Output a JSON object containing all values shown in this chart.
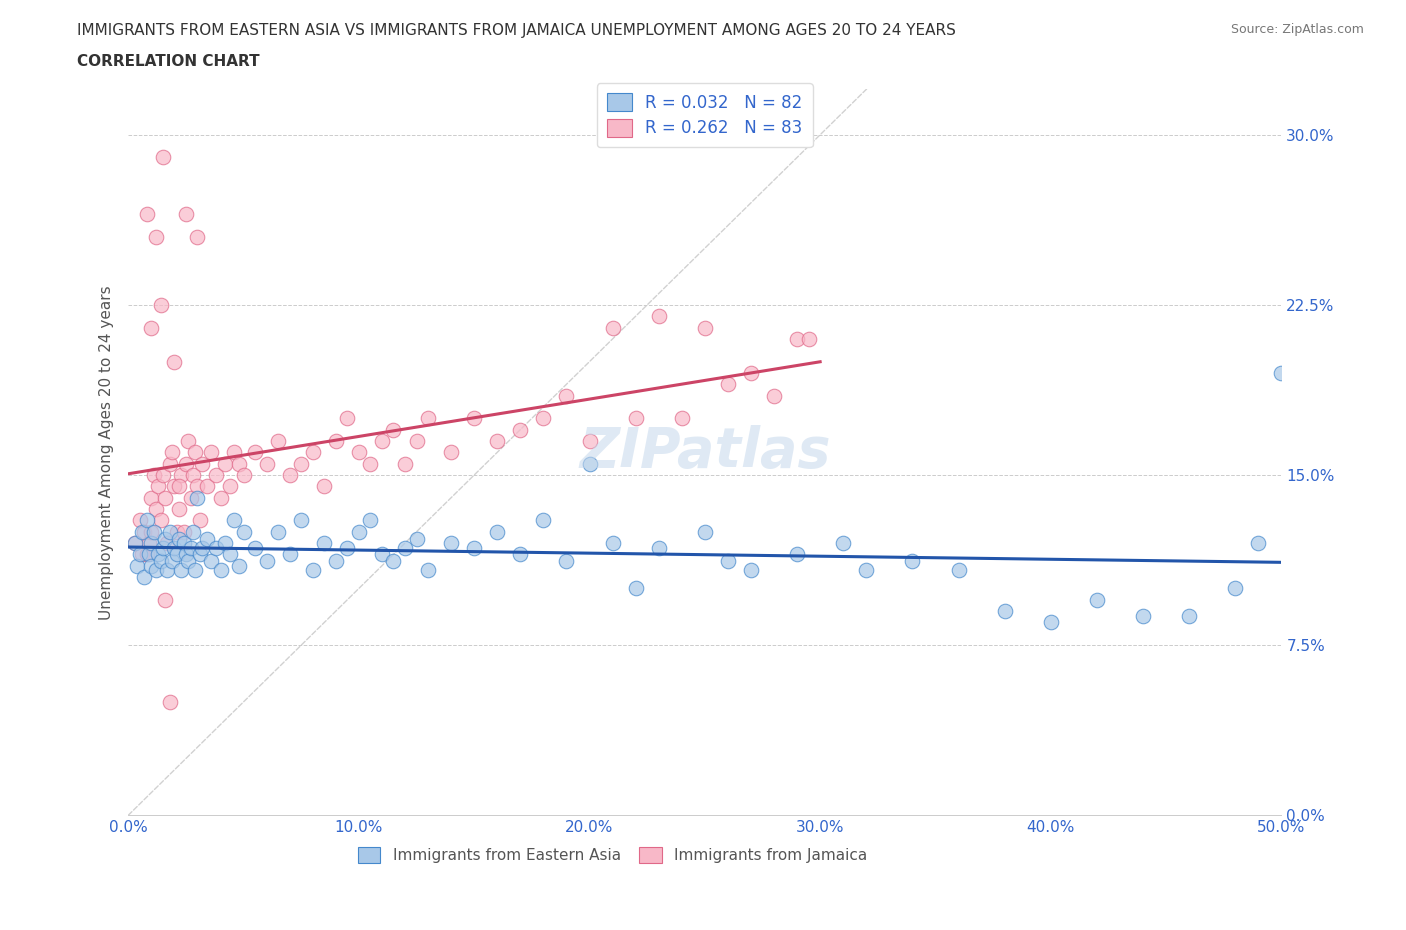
{
  "title_line1": "IMMIGRANTS FROM EASTERN ASIA VS IMMIGRANTS FROM JAMAICA UNEMPLOYMENT AMONG AGES 20 TO 24 YEARS",
  "title_line2": "CORRELATION CHART",
  "source_text": "Source: ZipAtlas.com",
  "ylabel": "Unemployment Among Ages 20 to 24 years",
  "xlim": [
    0.0,
    0.5
  ],
  "ylim": [
    0.0,
    0.32
  ],
  "xticks": [
    0.0,
    0.1,
    0.2,
    0.3,
    0.4,
    0.5
  ],
  "xticklabels": [
    "0.0%",
    "10.0%",
    "20.0%",
    "30.0%",
    "40.0%",
    "50.0%"
  ],
  "yticks": [
    0.0,
    0.075,
    0.15,
    0.225,
    0.3
  ],
  "yticklabels": [
    "0.0%",
    "7.5%",
    "15.0%",
    "22.5%",
    "30.0%"
  ],
  "legend_labels": [
    "Immigrants from Eastern Asia",
    "Immigrants from Jamaica"
  ],
  "legend_R_ea": "R = 0.032",
  "legend_N_ea": "N = 82",
  "legend_R_jam": "R = 0.262",
  "legend_N_jam": "N = 83",
  "color_eastern_asia_fill": "#a8c8e8",
  "color_eastern_asia_edge": "#4488cc",
  "color_jamaica_fill": "#f8b8c8",
  "color_jamaica_edge": "#e06888",
  "color_line_eastern_asia": "#2255aa",
  "color_line_jamaica": "#cc4466",
  "color_diag_line": "#cccccc",
  "watermark_text": "ZIPatlas",
  "eastern_asia_x": [
    0.003,
    0.004,
    0.005,
    0.006,
    0.007,
    0.008,
    0.009,
    0.01,
    0.01,
    0.011,
    0.012,
    0.013,
    0.014,
    0.015,
    0.016,
    0.017,
    0.018,
    0.019,
    0.02,
    0.021,
    0.022,
    0.023,
    0.024,
    0.025,
    0.026,
    0.027,
    0.028,
    0.029,
    0.03,
    0.031,
    0.032,
    0.034,
    0.036,
    0.038,
    0.04,
    0.042,
    0.044,
    0.046,
    0.048,
    0.05,
    0.055,
    0.06,
    0.065,
    0.07,
    0.075,
    0.08,
    0.085,
    0.09,
    0.095,
    0.1,
    0.105,
    0.11,
    0.115,
    0.12,
    0.125,
    0.13,
    0.14,
    0.15,
    0.16,
    0.17,
    0.18,
    0.19,
    0.2,
    0.21,
    0.22,
    0.23,
    0.25,
    0.26,
    0.27,
    0.29,
    0.31,
    0.32,
    0.34,
    0.36,
    0.38,
    0.4,
    0.42,
    0.44,
    0.46,
    0.48,
    0.49,
    0.5
  ],
  "eastern_asia_y": [
    0.12,
    0.11,
    0.115,
    0.125,
    0.105,
    0.13,
    0.115,
    0.12,
    0.11,
    0.125,
    0.108,
    0.115,
    0.112,
    0.118,
    0.122,
    0.108,
    0.125,
    0.112,
    0.118,
    0.115,
    0.122,
    0.108,
    0.12,
    0.115,
    0.112,
    0.118,
    0.125,
    0.108,
    0.14,
    0.115,
    0.118,
    0.122,
    0.112,
    0.118,
    0.108,
    0.12,
    0.115,
    0.13,
    0.11,
    0.125,
    0.118,
    0.112,
    0.125,
    0.115,
    0.13,
    0.108,
    0.12,
    0.112,
    0.118,
    0.125,
    0.13,
    0.115,
    0.112,
    0.118,
    0.122,
    0.108,
    0.12,
    0.118,
    0.125,
    0.115,
    0.13,
    0.112,
    0.155,
    0.12,
    0.1,
    0.118,
    0.125,
    0.112,
    0.108,
    0.115,
    0.12,
    0.108,
    0.112,
    0.108,
    0.09,
    0.085,
    0.095,
    0.088,
    0.088,
    0.1,
    0.12,
    0.195
  ],
  "jamaica_x": [
    0.003,
    0.005,
    0.006,
    0.007,
    0.008,
    0.009,
    0.01,
    0.01,
    0.011,
    0.012,
    0.013,
    0.014,
    0.015,
    0.016,
    0.017,
    0.018,
    0.019,
    0.02,
    0.021,
    0.022,
    0.023,
    0.024,
    0.025,
    0.026,
    0.027,
    0.028,
    0.029,
    0.03,
    0.031,
    0.032,
    0.034,
    0.036,
    0.038,
    0.04,
    0.042,
    0.044,
    0.046,
    0.048,
    0.05,
    0.055,
    0.06,
    0.065,
    0.07,
    0.075,
    0.08,
    0.085,
    0.09,
    0.095,
    0.1,
    0.105,
    0.11,
    0.115,
    0.12,
    0.125,
    0.13,
    0.14,
    0.15,
    0.16,
    0.17,
    0.18,
    0.19,
    0.2,
    0.21,
    0.22,
    0.23,
    0.24,
    0.25,
    0.26,
    0.27,
    0.28,
    0.29,
    0.295,
    0.025,
    0.03,
    0.015,
    0.02,
    0.01,
    0.012,
    0.008,
    0.014,
    0.016,
    0.022,
    0.018
  ],
  "jamaica_y": [
    0.12,
    0.13,
    0.115,
    0.125,
    0.115,
    0.12,
    0.125,
    0.14,
    0.15,
    0.135,
    0.145,
    0.13,
    0.15,
    0.14,
    0.12,
    0.155,
    0.16,
    0.145,
    0.125,
    0.135,
    0.15,
    0.125,
    0.155,
    0.165,
    0.14,
    0.15,
    0.16,
    0.145,
    0.13,
    0.155,
    0.145,
    0.16,
    0.15,
    0.14,
    0.155,
    0.145,
    0.16,
    0.155,
    0.15,
    0.16,
    0.155,
    0.165,
    0.15,
    0.155,
    0.16,
    0.145,
    0.165,
    0.175,
    0.16,
    0.155,
    0.165,
    0.17,
    0.155,
    0.165,
    0.175,
    0.16,
    0.175,
    0.165,
    0.17,
    0.175,
    0.185,
    0.165,
    0.215,
    0.175,
    0.22,
    0.175,
    0.215,
    0.19,
    0.195,
    0.185,
    0.21,
    0.21,
    0.265,
    0.255,
    0.29,
    0.2,
    0.215,
    0.255,
    0.265,
    0.225,
    0.095,
    0.145,
    0.05
  ]
}
